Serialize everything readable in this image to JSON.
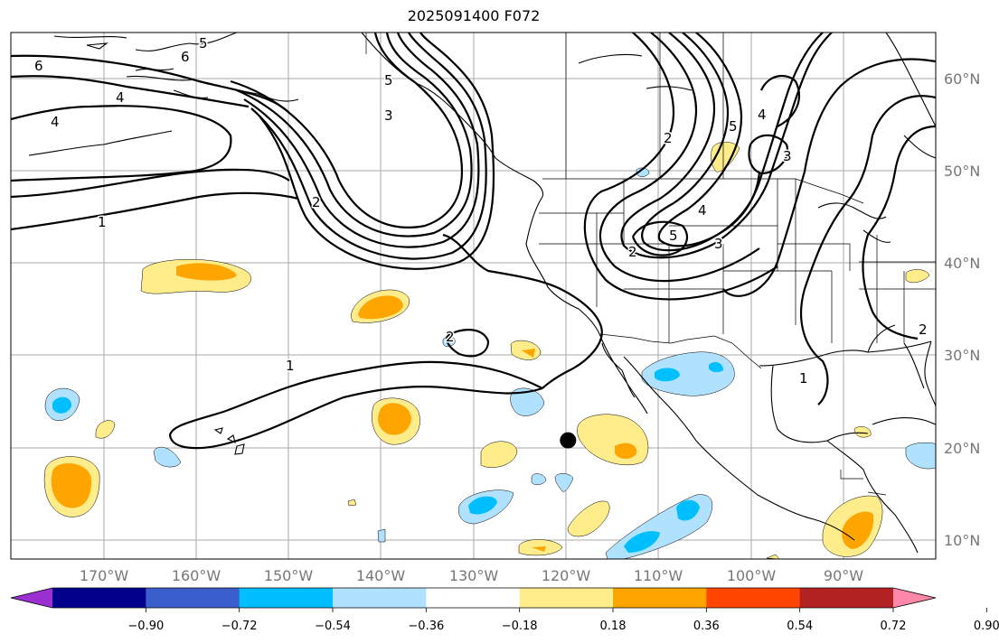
{
  "title": "2025091400 F072",
  "lat_labels": [
    "60°N",
    "50°N",
    "40°N",
    "30°N",
    "20°N",
    "10°N"
  ],
  "lon_labels": [
    "170°W",
    "160°W",
    "150°W",
    "140°W",
    "130°W",
    "120°W",
    "110°W",
    "100°W",
    "90°W"
  ],
  "colorbar": {
    "ticks": [
      "−0.90",
      "−0.72",
      "−0.54",
      "−0.36",
      "−0.18",
      "0.18",
      "0.36",
      "0.54",
      "0.72",
      "0.90"
    ],
    "colors": [
      "#9b30d0",
      "#00008b",
      "#3a5fcd",
      "#00bfff",
      "#b0e2ff",
      "#ffffff",
      "#ffec8b",
      "#ffa500",
      "#ff4500",
      "#b22222",
      "#ff88aa"
    ]
  },
  "contour_labels": [
    "6",
    "4",
    "4",
    "2",
    "1",
    "5",
    "3",
    "6",
    "5",
    "2",
    "1",
    "2",
    "5",
    "4",
    "3",
    "2",
    "5",
    "4",
    "3",
    "1",
    "2"
  ],
  "marker": {
    "lon": -119.8,
    "lat": 20.8
  }
}
